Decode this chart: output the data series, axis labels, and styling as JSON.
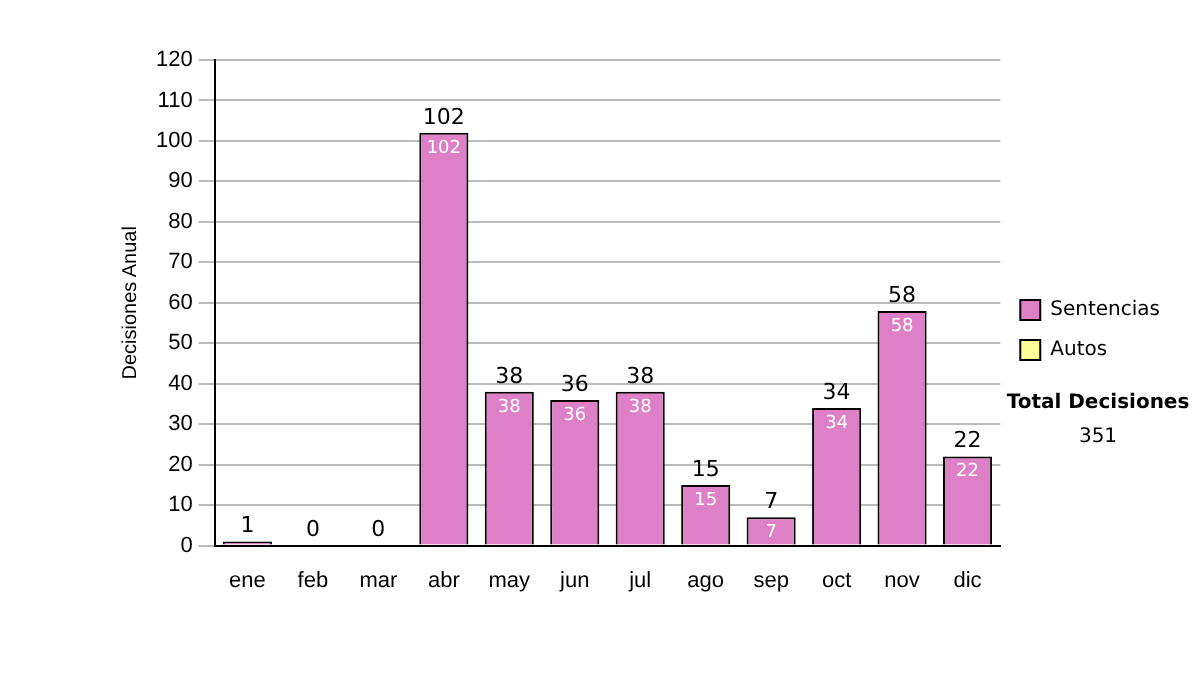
{
  "chart_data": {
    "type": "bar",
    "stacked": true,
    "ylabel": "Decisiones Anual",
    "categories": [
      "ene",
      "feb",
      "mar",
      "abr",
      "may",
      "jun",
      "jul",
      "ago",
      "sep",
      "oct",
      "nov",
      "dic"
    ],
    "series": [
      {
        "name": "Sentencias",
        "color": "#dd80c8",
        "values": [
          1,
          0,
          0,
          102,
          38,
          36,
          38,
          15,
          7,
          34,
          58,
          22
        ],
        "value_labels": [
          null,
          null,
          null,
          "102",
          "38",
          "36",
          "38",
          "15",
          "7",
          "34",
          "58",
          "22"
        ]
      },
      {
        "name": "Autos",
        "color": "#ffff99",
        "values": [
          0,
          0,
          0,
          0,
          0,
          0,
          0,
          0,
          0,
          0,
          0,
          0
        ]
      }
    ],
    "totals": [
      "1",
      "0",
      "0",
      "102",
      "38",
      "36",
      "38",
      "15",
      "7",
      "34",
      "58",
      "22"
    ],
    "ylim": [
      0,
      120
    ],
    "yticks": [
      0,
      10,
      20,
      30,
      40,
      50,
      60,
      70,
      80,
      90,
      100,
      110,
      120
    ],
    "grid": "y",
    "legend": "right",
    "annotations": [
      "Total Decisiones",
      "351"
    ]
  }
}
